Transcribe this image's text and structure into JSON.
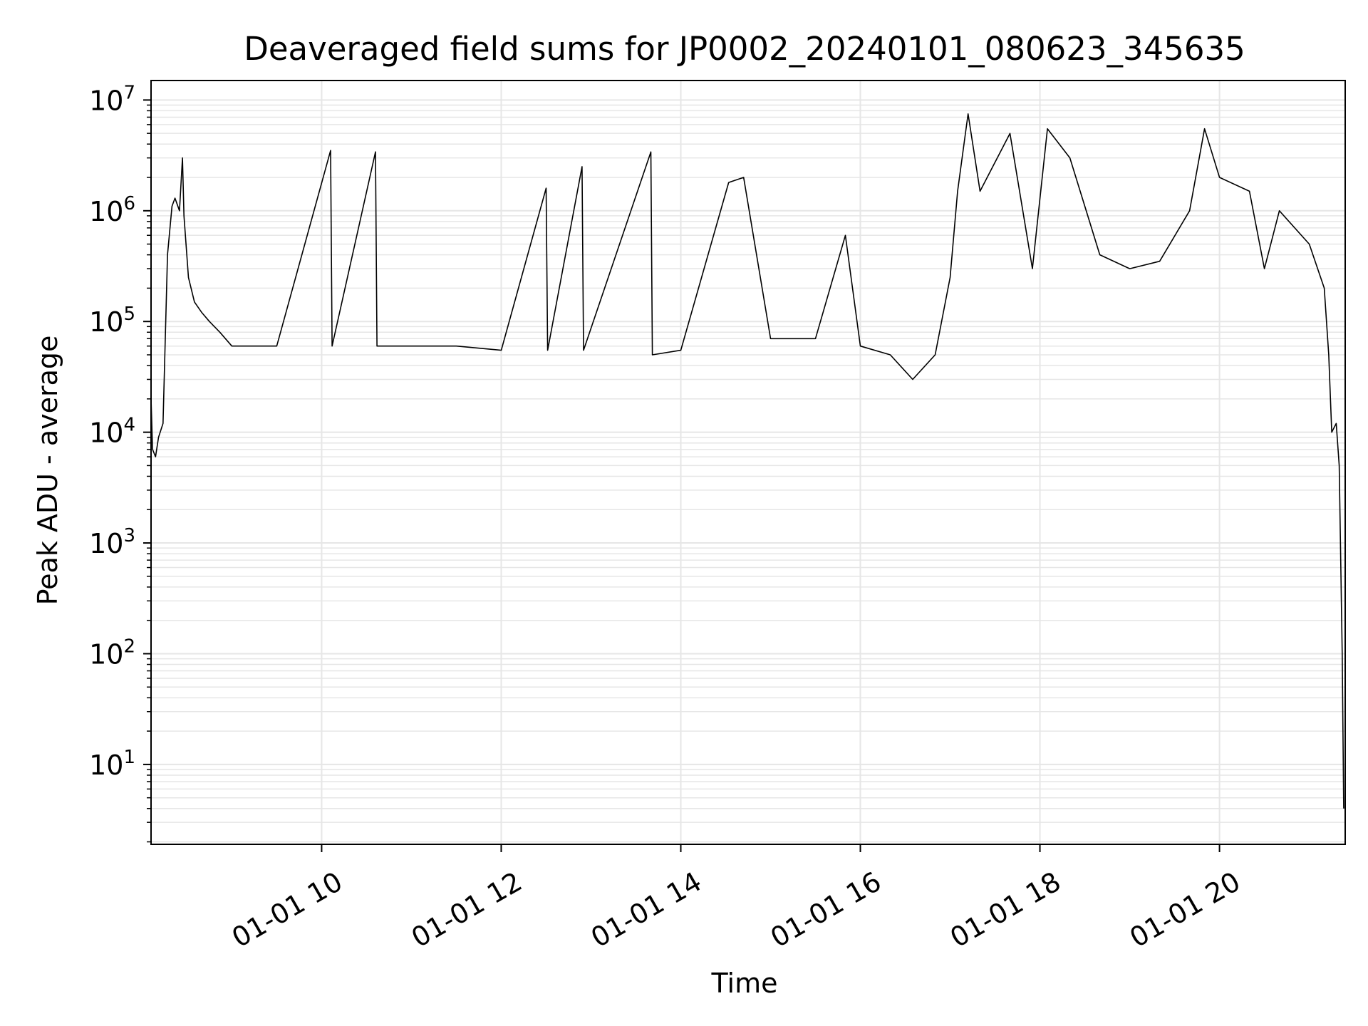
{
  "chart_data": {
    "type": "line",
    "title": "Deaveraged field sums for JP0002_20240101_080623_345635",
    "xlabel": "Time",
    "ylabel": "Peak ADU - average",
    "yscale": "log",
    "ylim": [
      1.9,
      15000000
    ],
    "xlim": [
      "2024-01-01 08:06",
      "2024-01-01 21:24"
    ],
    "grid": true,
    "legend": "none",
    "line_color": "#000000",
    "grid_color": "#e6e6e6",
    "x_ticks": [
      {
        "value": "2024-01-01 10:00",
        "label": "01-01 10"
      },
      {
        "value": "2024-01-01 12:00",
        "label": "01-01 12"
      },
      {
        "value": "2024-01-01 14:00",
        "label": "01-01 14"
      },
      {
        "value": "2024-01-01 16:00",
        "label": "01-01 16"
      },
      {
        "value": "2024-01-01 18:00",
        "label": "01-01 18"
      },
      {
        "value": "2024-01-01 20:00",
        "label": "01-01 20"
      }
    ],
    "y_ticks": [
      {
        "value": 10,
        "base": "10",
        "exp": "1"
      },
      {
        "value": 100,
        "base": "10",
        "exp": "2"
      },
      {
        "value": 1000,
        "base": "10",
        "exp": "3"
      },
      {
        "value": 10000,
        "base": "10",
        "exp": "4"
      },
      {
        "value": 100000,
        "base": "10",
        "exp": "5"
      },
      {
        "value": 1000000,
        "base": "10",
        "exp": "6"
      },
      {
        "value": 10000000,
        "base": "10",
        "exp": "7"
      }
    ],
    "series": [
      {
        "points": [
          [
            "2024-01-01 08:06",
            20000
          ],
          [
            "2024-01-01 08:07",
            7000
          ],
          [
            "2024-01-01 08:09",
            6000
          ],
          [
            "2024-01-01 08:11",
            9000
          ],
          [
            "2024-01-01 08:14",
            12000
          ],
          [
            "2024-01-01 08:17",
            400000
          ],
          [
            "2024-01-01 08:20",
            1100000
          ],
          [
            "2024-01-01 08:22",
            1300000
          ],
          [
            "2024-01-01 08:25",
            1000000
          ],
          [
            "2024-01-01 08:27",
            3000000
          ],
          [
            "2024-01-01 08:28",
            900000
          ],
          [
            "2024-01-01 08:31",
            250000
          ],
          [
            "2024-01-01 08:35",
            150000
          ],
          [
            "2024-01-01 08:40",
            120000
          ],
          [
            "2024-01-01 08:45",
            100000
          ],
          [
            "2024-01-01 08:52",
            80000
          ],
          [
            "2024-01-01 09:00",
            60000
          ],
          [
            "2024-01-01 09:10",
            60000
          ],
          [
            "2024-01-01 09:30",
            60000
          ],
          [
            "2024-01-01 10:06",
            3500000
          ],
          [
            "2024-01-01 10:07",
            60000
          ],
          [
            "2024-01-01 10:36",
            3400000
          ],
          [
            "2024-01-01 10:37",
            60000
          ],
          [
            "2024-01-01 11:00",
            60000
          ],
          [
            "2024-01-01 11:30",
            60000
          ],
          [
            "2024-01-01 12:00",
            55000
          ],
          [
            "2024-01-01 12:30",
            1600000
          ],
          [
            "2024-01-01 12:31",
            55000
          ],
          [
            "2024-01-01 12:54",
            2500000
          ],
          [
            "2024-01-01 12:55",
            55000
          ],
          [
            "2024-01-01 13:40",
            3400000
          ],
          [
            "2024-01-01 13:41",
            50000
          ],
          [
            "2024-01-01 14:00",
            55000
          ],
          [
            "2024-01-01 14:32",
            1800000
          ],
          [
            "2024-01-01 14:42",
            2000000
          ],
          [
            "2024-01-01 15:00",
            70000
          ],
          [
            "2024-01-01 15:30",
            70000
          ],
          [
            "2024-01-01 15:50",
            600000
          ],
          [
            "2024-01-01 16:00",
            60000
          ],
          [
            "2024-01-01 16:20",
            50000
          ],
          [
            "2024-01-01 16:35",
            30000
          ],
          [
            "2024-01-01 16:50",
            50000
          ],
          [
            "2024-01-01 17:00",
            250000
          ],
          [
            "2024-01-01 17:05",
            1500000
          ],
          [
            "2024-01-01 17:12",
            7500000
          ],
          [
            "2024-01-01 17:20",
            1500000
          ],
          [
            "2024-01-01 17:40",
            5000000
          ],
          [
            "2024-01-01 17:55",
            300000
          ],
          [
            "2024-01-01 18:05",
            5500000
          ],
          [
            "2024-01-01 18:20",
            3000000
          ],
          [
            "2024-01-01 18:40",
            400000
          ],
          [
            "2024-01-01 19:00",
            300000
          ],
          [
            "2024-01-01 19:20",
            350000
          ],
          [
            "2024-01-01 19:40",
            1000000
          ],
          [
            "2024-01-01 19:50",
            5500000
          ],
          [
            "2024-01-01 20:00",
            2000000
          ],
          [
            "2024-01-01 20:20",
            1500000
          ],
          [
            "2024-01-01 20:30",
            300000
          ],
          [
            "2024-01-01 20:40",
            1000000
          ],
          [
            "2024-01-01 21:00",
            500000
          ],
          [
            "2024-01-01 21:10",
            200000
          ],
          [
            "2024-01-01 21:13",
            50000
          ],
          [
            "2024-01-01 21:15",
            10000
          ],
          [
            "2024-01-01 21:18",
            12000
          ],
          [
            "2024-01-01 21:20",
            5000
          ],
          [
            "2024-01-01 21:22",
            100
          ],
          [
            "2024-01-01 21:23",
            4
          ]
        ]
      }
    ]
  }
}
